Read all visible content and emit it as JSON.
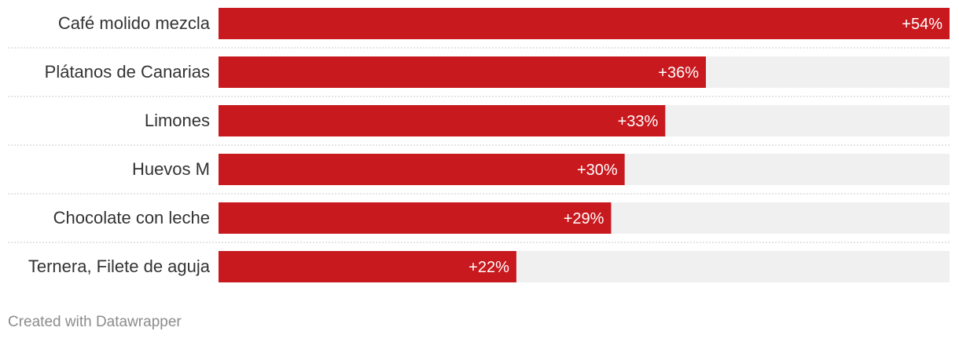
{
  "chart_data": {
    "type": "bar",
    "orientation": "horizontal",
    "categories": [
      "Café molido mezcla",
      "Plátanos de Canarias",
      "Limones",
      "Huevos M",
      "Chocolate con leche",
      "Ternera, Filete de aguja"
    ],
    "values": [
      54,
      36,
      33,
      30,
      29,
      22
    ],
    "value_labels": [
      "+54%",
      "+36%",
      "+33%",
      "+30%",
      "+29%",
      "+22%"
    ],
    "xlim": [
      0,
      54
    ],
    "grid": false,
    "bar_color": "#c8191e",
    "track_color": "#f0f0f0",
    "title": "",
    "xlabel": "",
    "ylabel": ""
  },
  "footer": {
    "credit": "Created with Datawrapper"
  }
}
